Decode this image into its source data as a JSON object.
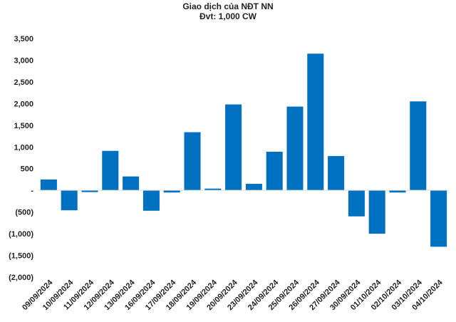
{
  "chart_data": {
    "type": "bar",
    "title": "Giao dịch của NĐT NN",
    "subtitle": "Đvt: 1,000 CW",
    "categories": [
      "09/09/2024",
      "10/09/2024",
      "11/09/2024",
      "12/09/2024",
      "13/09/2024",
      "16/09/2024",
      "17/09/2024",
      "18/09/2024",
      "19/09/2024",
      "20/09/2024",
      "23/09/2024",
      "24/09/2024",
      "25/09/2024",
      "26/09/2024",
      "27/09/2024",
      "30/09/2024",
      "01/10/2024",
      "02/10/2024",
      "03/10/2024",
      "04/10/2024"
    ],
    "values": [
      250,
      -460,
      -40,
      910,
      320,
      -470,
      -50,
      1340,
      40,
      1980,
      150,
      890,
      1930,
      3150,
      790,
      -600,
      -1000,
      -50,
      2050,
      -1300
    ],
    "ylim": [
      -2000,
      3500
    ],
    "yticks": [
      -2000,
      -1500,
      -1000,
      -500,
      0,
      500,
      1000,
      1500,
      2000,
      2500,
      3000,
      3500
    ],
    "ytick_labels": [
      "(2,000)",
      "(1,500)",
      "(1,000)",
      "(500)",
      "-",
      "500",
      "1,000",
      "1,500",
      "2,000",
      "2,500",
      "3,000",
      "3,500"
    ],
    "bar_color": "#0070C0",
    "grid": false,
    "legend": "none"
  }
}
